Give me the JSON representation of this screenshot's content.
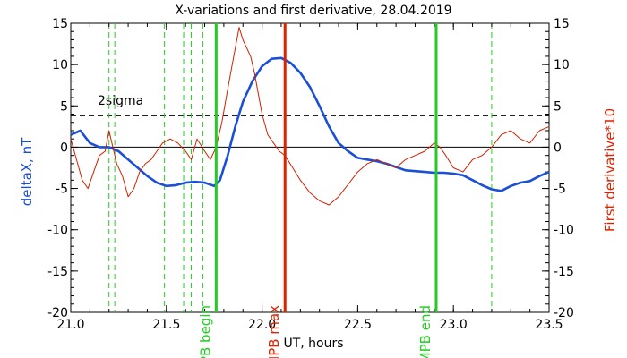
{
  "chart_data": {
    "type": "line",
    "title": "X-variations and first derivative, 28.04.2019",
    "xlabel": "UT, hours",
    "ylabel_left": "deltaX, nT",
    "ylabel_right": "First derivative*10",
    "xlim": [
      21.0,
      23.5
    ],
    "ylim_left": [
      -20,
      15
    ],
    "ylim_right": [
      -20,
      15
    ],
    "x_ticks": [
      "21.0",
      "21.5",
      "22.0",
      "22.5",
      "23.0",
      "23.5"
    ],
    "y_ticks_left": [
      "-20",
      "-15",
      "-10",
      "-5",
      "0",
      "5",
      "10",
      "15"
    ],
    "y_ticks_right": [
      "-20",
      "-15",
      "-10",
      "-5",
      "0",
      "5",
      "10",
      "15"
    ],
    "grid": false,
    "colors": {
      "deltaX": "#1a4fd6",
      "derivative": "#cc2200",
      "threshold": "#000000",
      "zero": "#000000",
      "mpb_line": "#22cc22",
      "mpb_max": "#dd2200",
      "dashed_marker": "#22cc22"
    },
    "threshold": {
      "label": "2sigma",
      "value": 3.8
    },
    "zero_line": 0,
    "markers": [
      {
        "label": "MPB begin",
        "x": 21.76,
        "color": "#22cc22"
      },
      {
        "label": "MPB max",
        "x": 22.12,
        "color": "#dd2200"
      },
      {
        "label": "MPB end",
        "x": 22.91,
        "color": "#22cc22"
      }
    ],
    "dashed_markers_x": [
      21.2,
      21.23,
      21.49,
      21.59,
      21.63,
      21.69,
      23.2
    ],
    "series": [
      {
        "axis": "left",
        "x": [
          21.0,
          21.05,
          21.1,
          21.15,
          21.2,
          21.25,
          21.3,
          21.35,
          21.4,
          21.45,
          21.5,
          21.55,
          21.6,
          21.65,
          21.7,
          21.75,
          21.78,
          21.82,
          21.86,
          21.9,
          21.95,
          22.0,
          22.05,
          22.1,
          22.15,
          22.2,
          22.25,
          22.3,
          22.35,
          22.4,
          22.45,
          22.5,
          22.55,
          22.6,
          22.65,
          22.7,
          22.75,
          22.8,
          22.85,
          22.9,
          22.95,
          23.0,
          23.05,
          23.1,
          23.15,
          23.2,
          23.25,
          23.3,
          23.35,
          23.4,
          23.45,
          23.5
        ],
        "values": [
          1.5,
          2.0,
          0.5,
          0.0,
          0.0,
          -0.5,
          -1.5,
          -2.5,
          -3.5,
          -4.3,
          -4.7,
          -4.6,
          -4.3,
          -4.2,
          -4.3,
          -4.7,
          -4.0,
          -1.0,
          2.5,
          5.5,
          8.0,
          9.8,
          10.7,
          10.8,
          10.2,
          9.0,
          7.3,
          5.0,
          2.5,
          0.5,
          -0.5,
          -1.3,
          -1.5,
          -1.7,
          -2.0,
          -2.4,
          -2.8,
          -2.9,
          -3.0,
          -3.1,
          -3.1,
          -3.2,
          -3.4,
          -4.0,
          -4.6,
          -5.1,
          -5.3,
          -4.7,
          -4.3,
          -4.1,
          -3.5,
          -3.0
        ]
      },
      {
        "axis": "right",
        "x": [
          21.0,
          21.03,
          21.06,
          21.09,
          21.12,
          21.15,
          21.18,
          21.2,
          21.22,
          21.24,
          21.27,
          21.3,
          21.33,
          21.36,
          21.39,
          21.42,
          21.45,
          21.48,
          21.52,
          21.56,
          21.6,
          21.63,
          21.66,
          21.7,
          21.73,
          21.76,
          21.79,
          21.82,
          21.84,
          21.86,
          21.88,
          21.9,
          21.92,
          21.94,
          21.96,
          21.98,
          22.0,
          22.03,
          22.06,
          22.09,
          22.12,
          22.16,
          22.2,
          22.25,
          22.3,
          22.35,
          22.4,
          22.45,
          22.5,
          22.55,
          22.6,
          22.65,
          22.7,
          22.75,
          22.8,
          22.85,
          22.9,
          22.93,
          22.96,
          23.0,
          23.05,
          23.1,
          23.15,
          23.2,
          23.25,
          23.3,
          23.35,
          23.4,
          23.45,
          23.5
        ],
        "values": [
          1.0,
          -1.5,
          -4.0,
          -5.0,
          -3.0,
          -1.0,
          -0.5,
          2.0,
          0.0,
          -2.0,
          -3.5,
          -6.0,
          -5.0,
          -3.0,
          -2.0,
          -1.5,
          -0.5,
          0.5,
          1.0,
          0.5,
          -0.5,
          -1.5,
          1.0,
          -0.5,
          -1.5,
          0.0,
          3.0,
          7.0,
          9.5,
          12.0,
          14.5,
          13.0,
          12.0,
          11.0,
          9.0,
          6.5,
          4.0,
          1.5,
          0.5,
          -0.5,
          -1.0,
          -2.5,
          -4.0,
          -5.5,
          -6.5,
          -7.0,
          -6.0,
          -4.5,
          -3.0,
          -2.0,
          -1.5,
          -2.0,
          -2.5,
          -1.5,
          -1.0,
          -0.5,
          0.5,
          0.0,
          -1.0,
          -2.5,
          -3.0,
          -1.5,
          -1.0,
          0.0,
          1.5,
          2.0,
          1.0,
          0.5,
          2.0,
          2.5
        ]
      }
    ]
  }
}
